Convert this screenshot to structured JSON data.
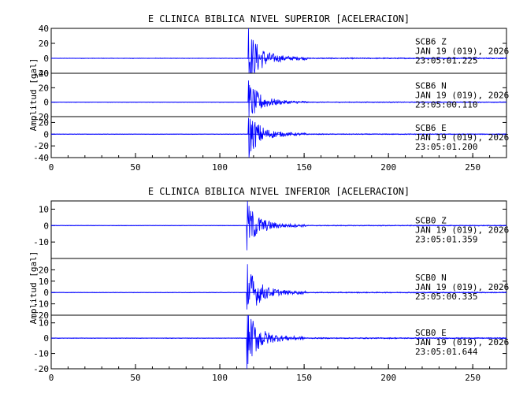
{
  "colors": {
    "trace": "#0000ff",
    "axis": "#000000",
    "background": "#ffffff"
  },
  "chart_data": [
    {
      "type": "line",
      "title": "E CLINICA BIBLICA NIVEL SUPERIOR [ACELERACION]",
      "ylabel": "Amplitud [gal]",
      "xlim": [
        0,
        270
      ],
      "xticks": [
        0,
        50,
        100,
        150,
        200,
        250
      ],
      "traces": [
        {
          "station": "SCB6",
          "component": "Z",
          "date": "JAN 19 (019), 2026",
          "time": "23:05:01.225",
          "ylim": [
            -20,
            40
          ],
          "yticks": [
            -20,
            0,
            20,
            40
          ],
          "onset": 117,
          "peak_pos": 40,
          "peak_neg": -20
        },
        {
          "station": "SCB6",
          "component": "N",
          "date": "JAN 19 (019), 2026",
          "time": "23:05:00.110",
          "ylim": [
            -20,
            40
          ],
          "yticks": [
            -20,
            0,
            20,
            40
          ],
          "onset": 117,
          "peak_pos": 30,
          "peak_neg": -20
        },
        {
          "station": "SCB6",
          "component": "E",
          "date": "JAN 19 (019), 2026",
          "time": "23:05:01.200",
          "ylim": [
            -40,
            30
          ],
          "yticks": [
            -40,
            -20,
            0,
            20
          ],
          "onset": 117,
          "peak_pos": 28,
          "peak_neg": -40
        }
      ]
    },
    {
      "type": "line",
      "title": "E CLINICA BIBLICA NIVEL INFERIOR [ACELERACION]",
      "ylabel": "Amplitud [gal]",
      "xlim": [
        0,
        270
      ],
      "xticks": [
        0,
        50,
        100,
        150,
        200,
        250
      ],
      "traces": [
        {
          "station": "SCB0",
          "component": "Z",
          "date": "JAN 19 (019), 2026",
          "time": "23:05:01.359",
          "ylim": [
            -20,
            15
          ],
          "yticks": [
            -10,
            0,
            10
          ],
          "onset": 116,
          "peak_pos": 15,
          "peak_neg": -15
        },
        {
          "station": "SCB0",
          "component": "N",
          "date": "JAN 19 (019), 2026",
          "time": "23:05:00.335",
          "ylim": [
            -20,
            30
          ],
          "yticks": [
            -20,
            -10,
            0,
            10,
            20
          ],
          "onset": 116,
          "peak_pos": 25,
          "peak_neg": -15
        },
        {
          "station": "SCB0",
          "component": "E",
          "date": "JAN 19 (019), 2026",
          "time": "23:05:01.644",
          "ylim": [
            -20,
            15
          ],
          "yticks": [
            -20,
            -10,
            0,
            10
          ],
          "onset": 116,
          "peak_pos": 15,
          "peak_neg": -20
        }
      ]
    }
  ]
}
